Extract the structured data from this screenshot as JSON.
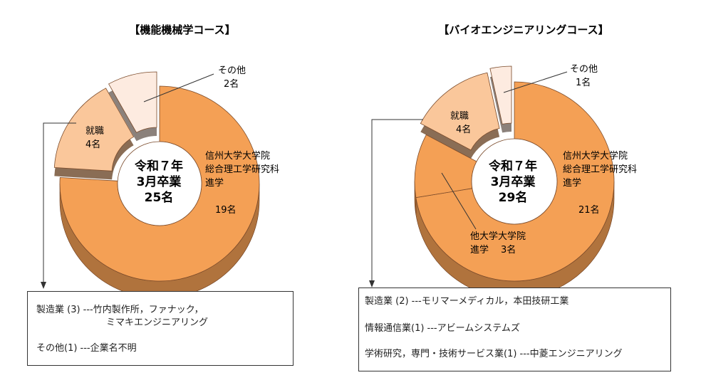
{
  "chart_data": [
    {
      "type": "pie",
      "title": "【機能機械学コース】",
      "center_label": [
        "令和７年",
        "3月卒業",
        "25名"
      ],
      "slices": [
        {
          "label": [
            "信州大学大学院",
            "総合理工学研究科",
            "進学"
          ],
          "value_label": "19名",
          "value": 19,
          "color": "#f4a055"
        },
        {
          "label": [
            "就職"
          ],
          "value_label": "4名",
          "value": 4,
          "color": "#fac79b"
        },
        {
          "label": [
            "その他"
          ],
          "value_label": "2名",
          "value": 2,
          "color": "#fdebe0"
        }
      ],
      "detail_box": {
        "lines": [
          "製造業 (3) ---竹内製作所，ファナック，",
          "ミマキエンジニアリング",
          "その他(1) ---企業名不明"
        ]
      }
    },
    {
      "type": "pie",
      "title": "【バイオエンジニアリングコース】",
      "center_label": [
        "令和７年",
        "3月卒業",
        "29名"
      ],
      "slices": [
        {
          "label": [
            "信州大学大学院",
            "総合理工学研究科",
            "進学"
          ],
          "value_label": "21名",
          "value": 21,
          "color": "#f4a055"
        },
        {
          "label": [
            "他大学大学院",
            "進学"
          ],
          "value_label": "3名",
          "value": 3,
          "color": "#f4a055"
        },
        {
          "label": [
            "就職"
          ],
          "value_label": "4名",
          "value": 4,
          "color": "#fac79b"
        },
        {
          "label": [
            "その他"
          ],
          "value_label": "1名",
          "value": 1,
          "color": "#fdebe0"
        }
      ],
      "detail_box": {
        "lines": [
          "製造業 (2) ---モリマーメディカル，本田技研工業",
          "情報通信業(1) ---アビームシステムズ",
          "学術研究，専門・技術サービス業(1) ---中菱エンジニアリング"
        ]
      }
    }
  ]
}
